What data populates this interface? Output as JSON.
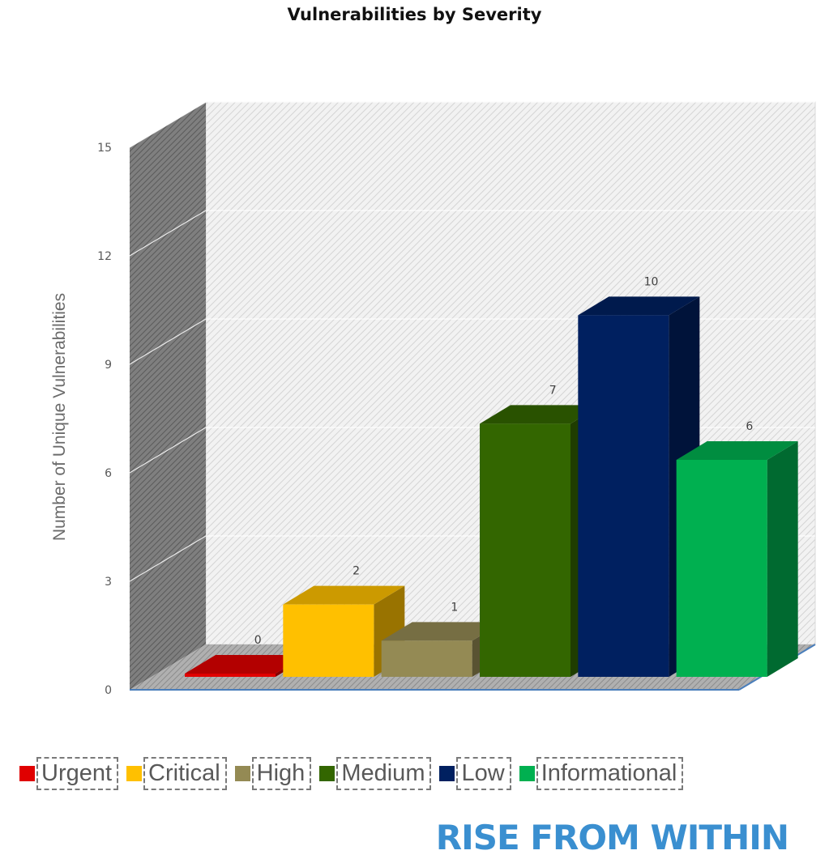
{
  "chart_data": {
    "type": "bar",
    "title": "Vulnerabilities by Severity",
    "ylabel": "Number of Unique Vulnerabilities",
    "xlabel": "",
    "ylim": [
      0,
      15
    ],
    "yticks": [
      "0",
      "3",
      "6",
      "9",
      "12",
      "15"
    ],
    "categories": [
      "Urgent",
      "Critical",
      "High",
      "Medium",
      "Low",
      "Informational"
    ],
    "values": [
      0,
      2,
      1,
      7,
      10,
      6
    ],
    "data_labels": [
      "0",
      "2",
      "1",
      "7",
      "10",
      "6"
    ],
    "colors": [
      "#e00000",
      "#ffc000",
      "#948a54",
      "#336600",
      "#002060",
      "#00b050"
    ],
    "grid": true,
    "legend_position": "bottom",
    "style": "3d-column"
  },
  "legend": [
    {
      "label": "Urgent",
      "color": "#e00000"
    },
    {
      "label": "Critical",
      "color": "#ffc000"
    },
    {
      "label": "High",
      "color": "#948a54"
    },
    {
      "label": "Medium",
      "color": "#336600"
    },
    {
      "label": "Low",
      "color": "#002060"
    },
    {
      "label": "Informational",
      "color": "#00b050"
    }
  ],
  "brand": {
    "tagline": "RISE FROM WITHIN",
    "color": "#3a8fd0"
  }
}
